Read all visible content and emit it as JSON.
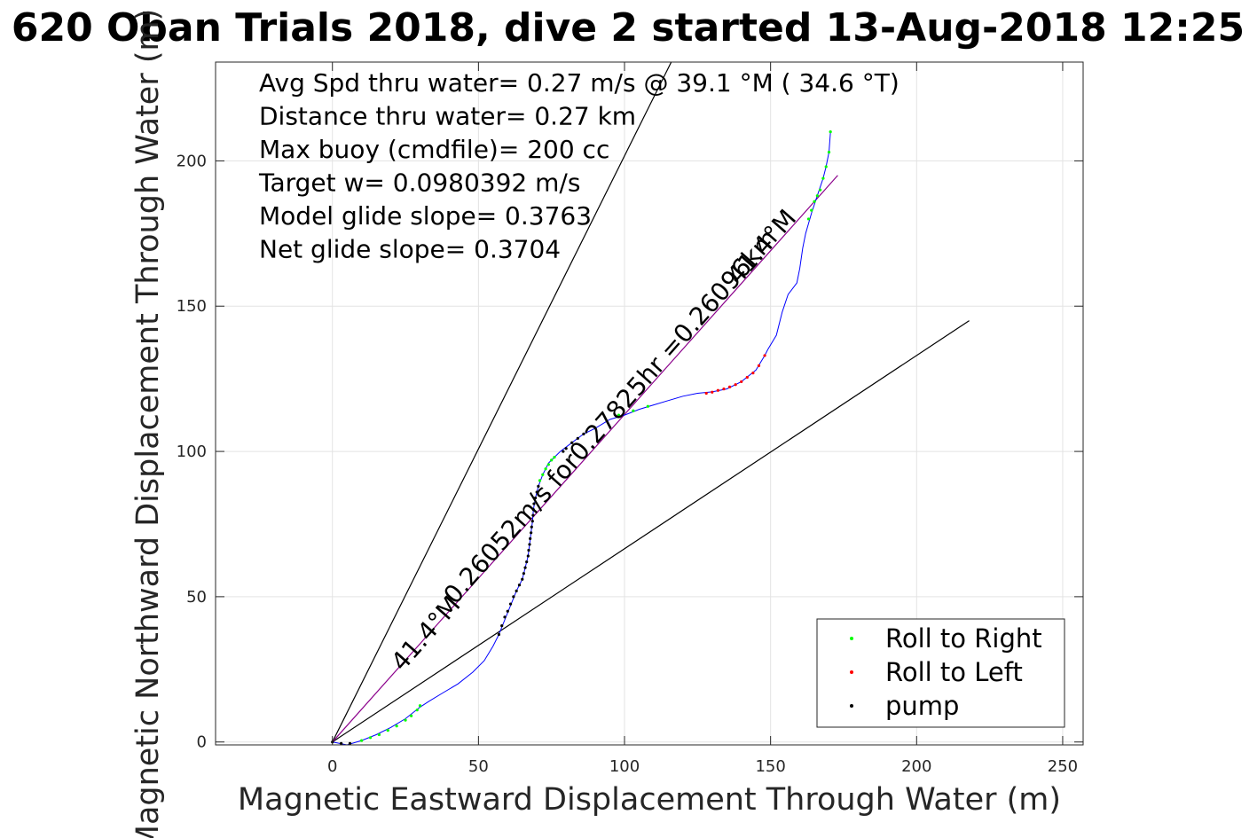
{
  "chart_data": {
    "type": "scatter",
    "title": "620 Oban Trials 2018, dive 2 started 13-Aug-2018 12:25",
    "xlabel": "Magnetic Eastward Displacement Through Water (m)",
    "ylabel": "Magnetic Northward Displacement Through Water (m)",
    "xlim": [
      -40,
      257
    ],
    "ylim": [
      -1,
      234
    ],
    "xticks": [
      0,
      50,
      100,
      150,
      200,
      250
    ],
    "yticks": [
      0,
      50,
      100,
      150,
      200
    ],
    "grid": true,
    "legend_position": "bottom-right",
    "stats": [
      "Avg Spd thru water=  0.27 m/s @  39.1 °M ( 34.6 °T)",
      "Distance thru water=  0.27 km",
      "Max buoy (cmdfile)= 200 cc",
      "Target w= 0.0980392 m/s",
      "Model glide slope= 0.3763",
      "Net glide slope= 0.3704"
    ],
    "annotations": [
      {
        "text": "0.26052m/s for0.27825hr =0.26096km",
        "x": 42,
        "y": 47,
        "angle": 48.6
      },
      {
        "text": "41.4°M",
        "x": 24,
        "y": 24,
        "angle": 48.6
      },
      {
        "text": "41.4°M",
        "x": 139,
        "y": 157,
        "angle": 48.6
      }
    ],
    "reference_lines": [
      {
        "name": "model glide slope line",
        "color": "#000000",
        "points": [
          [
            0,
            0
          ],
          [
            116,
            234
          ]
        ]
      },
      {
        "name": "net glide slope line",
        "color": "#000000",
        "points": [
          [
            0,
            0
          ],
          [
            218,
            145
          ]
        ]
      },
      {
        "name": "heading line",
        "color": "#8b008b",
        "points": [
          [
            0,
            0
          ],
          [
            173,
            195
          ]
        ]
      }
    ],
    "track": {
      "name": "track",
      "color": "#0000ff",
      "points": [
        [
          0,
          0
        ],
        [
          5,
          -1
        ],
        [
          10,
          0.5
        ],
        [
          15,
          2.5
        ],
        [
          20,
          5
        ],
        [
          25,
          8
        ],
        [
          30,
          12
        ],
        [
          33,
          14
        ],
        [
          38,
          17
        ],
        [
          43,
          20
        ],
        [
          48,
          24
        ],
        [
          52,
          28
        ],
        [
          55,
          33
        ],
        [
          57,
          37
        ],
        [
          59,
          42
        ],
        [
          61,
          47
        ],
        [
          63,
          52
        ],
        [
          65,
          56
        ],
        [
          66,
          60
        ],
        [
          67,
          64
        ],
        [
          67.5,
          68
        ],
        [
          68,
          72
        ],
        [
          68.5,
          76
        ],
        [
          68.8,
          80
        ],
        [
          69.5,
          84
        ],
        [
          70.5,
          88
        ],
        [
          72,
          92
        ],
        [
          74,
          96
        ],
        [
          76,
          98
        ],
        [
          78,
          100
        ],
        [
          82,
          103
        ],
        [
          86,
          106
        ],
        [
          90,
          108
        ],
        [
          95,
          111
        ],
        [
          100,
          112.5
        ],
        [
          105,
          114.5
        ],
        [
          110,
          116
        ],
        [
          115,
          117.5
        ],
        [
          120,
          119
        ],
        [
          125,
          120
        ],
        [
          130,
          120.5
        ],
        [
          135,
          121.5
        ],
        [
          140,
          124
        ],
        [
          145,
          128
        ],
        [
          148,
          133
        ],
        [
          149,
          135
        ],
        [
          152,
          140
        ],
        [
          154,
          148
        ],
        [
          156,
          154
        ],
        [
          159,
          158
        ],
        [
          160,
          163
        ],
        [
          161,
          170
        ],
        [
          162,
          175
        ],
        [
          164,
          182
        ],
        [
          166,
          188
        ],
        [
          168,
          194
        ],
        [
          169,
          198
        ],
        [
          170,
          203
        ],
        [
          170.5,
          210
        ]
      ]
    },
    "series": [
      {
        "name": "Roll to Right",
        "color": "#00ff00",
        "points": [
          [
            10,
            0.5
          ],
          [
            13,
            1.5
          ],
          [
            16,
            2.5
          ],
          [
            19,
            4
          ],
          [
            22,
            5.5
          ],
          [
            25,
            7.5
          ],
          [
            27,
            9
          ],
          [
            29,
            11
          ],
          [
            30,
            12.5
          ],
          [
            71,
            90
          ],
          [
            72,
            92
          ],
          [
            73,
            94
          ],
          [
            74,
            95.5
          ],
          [
            75,
            97
          ],
          [
            76,
            98
          ],
          [
            98,
            112.5
          ],
          [
            103,
            114
          ],
          [
            108,
            115.5
          ],
          [
            163,
            180
          ],
          [
            164,
            183
          ],
          [
            165,
            186
          ],
          [
            166,
            188
          ],
          [
            167,
            190
          ],
          [
            168,
            194
          ],
          [
            169,
            198
          ],
          [
            170,
            203
          ],
          [
            170.5,
            210
          ]
        ]
      },
      {
        "name": "Roll to Left",
        "color": "#ff0000",
        "points": [
          [
            128,
            120
          ],
          [
            130,
            120.4
          ],
          [
            132,
            121
          ],
          [
            134,
            121.5
          ],
          [
            136,
            122.2
          ],
          [
            138,
            123
          ],
          [
            140,
            124
          ],
          [
            142,
            125.5
          ],
          [
            144,
            127
          ],
          [
            146,
            129.5
          ],
          [
            148,
            133
          ]
        ]
      },
      {
        "name": "pump",
        "color": "#000000",
        "points": [
          [
            0,
            0
          ],
          [
            3,
            -0.5
          ],
          [
            6,
            -0.5
          ],
          [
            57,
            37
          ],
          [
            58,
            40
          ],
          [
            59,
            43
          ],
          [
            60,
            45
          ],
          [
            61,
            47.5
          ],
          [
            62,
            50
          ],
          [
            63,
            52
          ],
          [
            64,
            54
          ],
          [
            65,
            56
          ],
          [
            65.5,
            58
          ],
          [
            66,
            60
          ],
          [
            66.5,
            62
          ],
          [
            67,
            64
          ],
          [
            67.2,
            66
          ],
          [
            67.5,
            68
          ],
          [
            67.7,
            70
          ],
          [
            68,
            72
          ],
          [
            68.2,
            74
          ],
          [
            68.5,
            76
          ],
          [
            68.7,
            78
          ],
          [
            68.8,
            80
          ],
          [
            69,
            82
          ],
          [
            69.5,
            84
          ],
          [
            70,
            86
          ],
          [
            70.5,
            88
          ],
          [
            79,
            100
          ],
          [
            80,
            101
          ],
          [
            82,
            103
          ],
          [
            84,
            104.5
          ],
          [
            86,
            106
          ]
        ]
      }
    ]
  }
}
